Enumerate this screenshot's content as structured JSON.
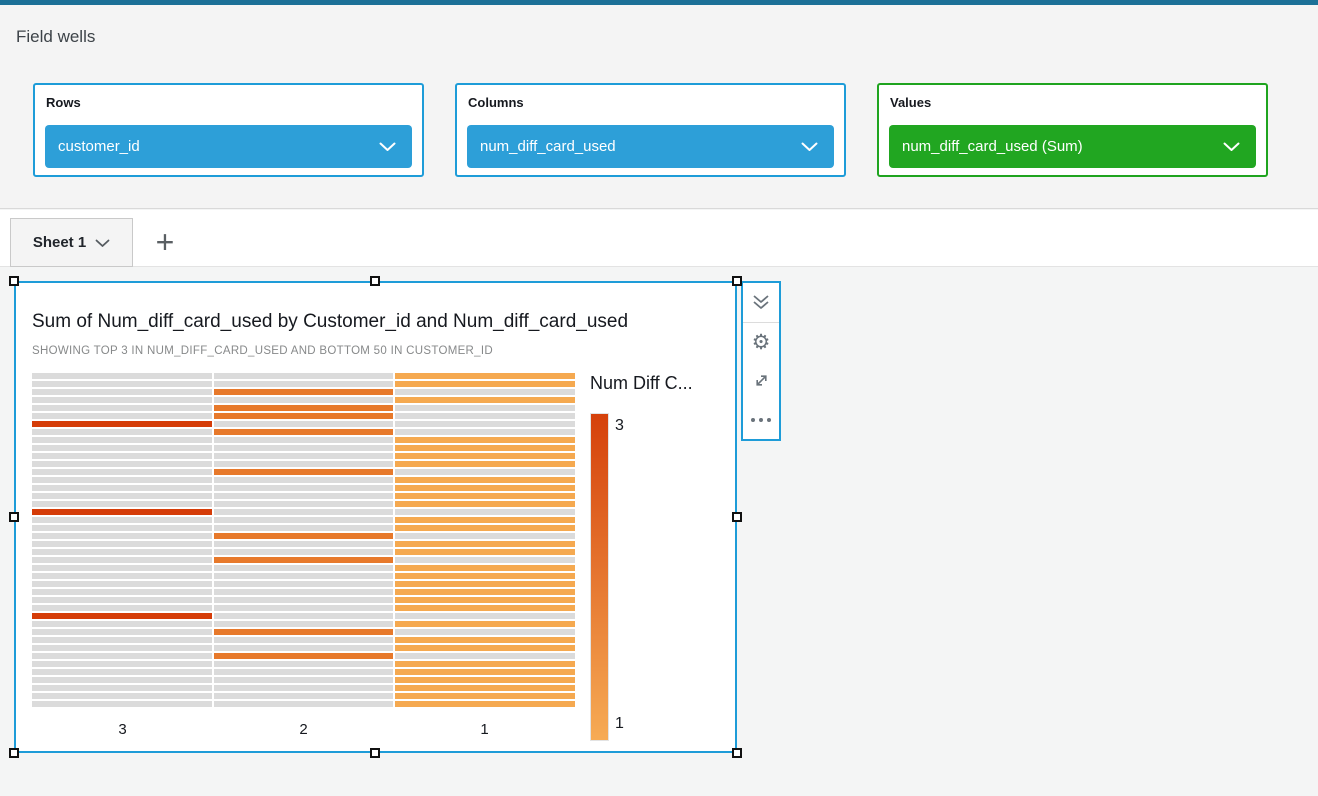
{
  "field_wells": {
    "title": "Field wells",
    "wells": [
      {
        "label": "Rows",
        "value": "customer_id",
        "pill_color": "#2d9fd8",
        "border_color": "#1e9cd8"
      },
      {
        "label": "Columns",
        "value": "num_diff_card_used",
        "pill_color": "#2d9fd8",
        "border_color": "#1e9cd8"
      },
      {
        "label": "Values",
        "value": "num_diff_card_used (Sum)",
        "pill_color": "#21a621",
        "border_color": "#1fa41f"
      }
    ]
  },
  "sheet_tabs": {
    "active_tab": "Sheet 1",
    "add_tab_label": "+"
  },
  "visual": {
    "title": "Sum of Num_diff_card_used by Customer_id and Num_diff_card_used",
    "subtitle": "SHOWING TOP 3 IN NUM_DIFF_CARD_USED AND BOTTOM 50 IN CUSTOMER_ID",
    "toolbar_icons": [
      {
        "name": "collapse-double-chevron-icon"
      },
      {
        "name": "settings-gear-icon"
      },
      {
        "name": "expand-arrows-icon"
      },
      {
        "name": "menu-ellipsis-icon"
      }
    ],
    "selection_color": "#1e9cd8"
  },
  "chart_data": {
    "type": "heatmap",
    "title": "Sum of Num_diff_card_used by Customer_id and Num_diff_card_used",
    "subtitle": "SHOWING TOP 3 IN NUM_DIFF_CARD_USED AND BOTTOM 50 IN CUSTOMER_ID",
    "xlabel_categories": [
      "3",
      "2",
      "1"
    ],
    "y_axis": "customer_id (bottom 50, labels not shown)",
    "row_bucket_values": [
      1,
      1,
      2,
      1,
      2,
      2,
      3,
      2,
      1,
      1,
      1,
      1,
      2,
      1,
      1,
      1,
      1,
      3,
      1,
      1,
      2,
      1,
      1,
      2,
      1,
      1,
      1,
      1,
      1,
      1,
      3,
      1,
      2,
      1,
      1,
      2,
      1,
      1,
      1,
      1,
      1,
      1
    ],
    "value_colors": {
      "1": "#f5a950",
      "2": "#e7792b",
      "3": "#d53c08",
      "empty": "#dbdbdb"
    },
    "legend": {
      "title": "Num Diff C...",
      "max_label": "3",
      "min_label": "1",
      "color_max": "#d5410b",
      "color_min": "#f6ab55",
      "position": "right"
    },
    "grid": false
  },
  "colors": {
    "top_bar": "#1c7097",
    "panel_background": "#f4f4f4",
    "canvas_background": "#f4f5f5",
    "accent_blue": "#1e9cd8",
    "accent_green": "#1fa41f"
  }
}
